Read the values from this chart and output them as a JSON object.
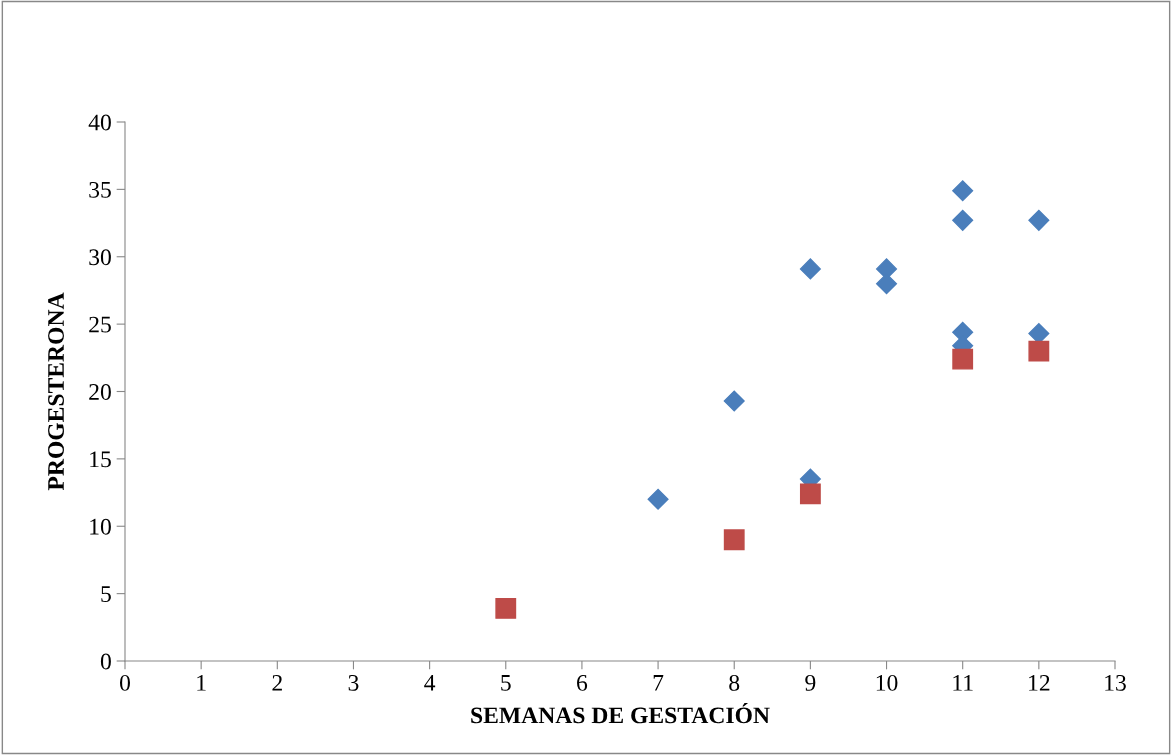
{
  "chart_data": {
    "type": "scatter",
    "xlabel": "SEMANAS DE GESTACIÓN",
    "ylabel": "PROGESTERONA",
    "xlim": [
      0,
      13
    ],
    "xticks": [
      0,
      1,
      2,
      3,
      4,
      5,
      6,
      7,
      8,
      9,
      10,
      11,
      12,
      13
    ],
    "ylim": [
      0,
      40
    ],
    "yticks": [
      0,
      5,
      10,
      15,
      20,
      25,
      30,
      35,
      40
    ],
    "grid": false,
    "series": [
      {
        "color": "#4a7ebb",
        "marker": "diamond",
        "x": [
          7,
          8,
          9,
          9,
          10,
          10,
          11,
          11,
          11,
          11,
          12,
          12
        ],
        "values": [
          12.0,
          19.3,
          29.1,
          13.5,
          29.1,
          28.0,
          34.9,
          32.7,
          24.4,
          23.4,
          32.7,
          24.3
        ]
      },
      {
        "color": "#be4b48",
        "marker": "square",
        "x": [
          5,
          8,
          9,
          11,
          12
        ],
        "values": [
          3.9,
          9.0,
          12.4,
          22.4,
          23.0
        ]
      }
    ]
  }
}
